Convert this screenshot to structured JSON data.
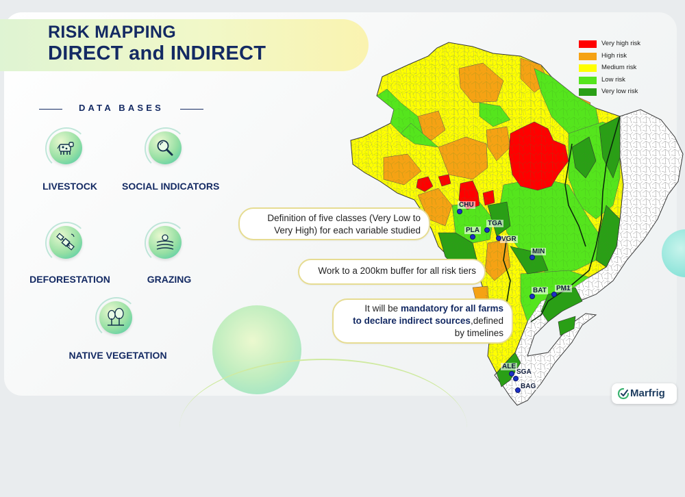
{
  "title": {
    "line1": "RISK MAPPING",
    "line2": "DIRECT and INDIRECT"
  },
  "data_bases": {
    "heading": "DATA BASES",
    "items": [
      {
        "label": "LIVESTOCK",
        "icon": "cow-icon"
      },
      {
        "label": "SOCIAL INDICATORS",
        "icon": "magnifier-icon"
      },
      {
        "label": "DEFORESTATION",
        "icon": "satellite-icon"
      },
      {
        "label": "GRAZING",
        "icon": "field-icon"
      },
      {
        "label": "NATIVE VEGETATION",
        "icon": "trees-icon"
      }
    ]
  },
  "callouts": {
    "classes_line1": "Definition of five classes (Very Low to",
    "classes_line2": "Very High) for each variable studied",
    "buffer": "Work to a 200km buffer for all risk tiers",
    "mandatory_line1_plain": "It will be ",
    "mandatory_line1_bold": "mandatory for all farms",
    "mandatory_line2_bold": "to declare indirect sources",
    "mandatory_line2_plain": ",defined",
    "mandatory_line3": "by timelines"
  },
  "legend": [
    {
      "label": "Very high risk",
      "color": "#ff0000"
    },
    {
      "label": "High risk",
      "color": "#f5a214"
    },
    {
      "label": "Medium risk",
      "color": "#ffff00"
    },
    {
      "label": "Low risk",
      "color": "#55e51d"
    },
    {
      "label": "Very low risk",
      "color": "#2a9f16"
    }
  ],
  "map": {
    "cities": [
      "CHU",
      "PLA",
      "TGA",
      "VGR",
      "MIN",
      "BAT",
      "PM1",
      "ALE",
      "SGA",
      "BAG"
    ],
    "colors": {
      "very_high": "#ff0000",
      "high": "#f5a214",
      "medium": "#ffff00",
      "low": "#55e51d",
      "very_low": "#2a9f16",
      "unassessed": "#ffffff",
      "dot": "#1d2fc4"
    }
  },
  "brand": {
    "name": "Marfrig",
    "icon": "marfrig-logo-icon"
  }
}
